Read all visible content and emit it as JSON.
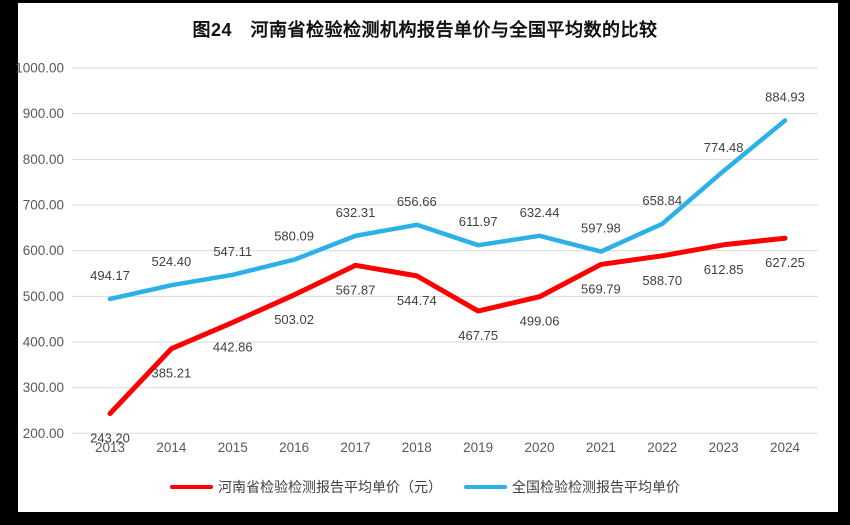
{
  "title": "图24　河南省检验检测机构报告单价与全国平均数的比较",
  "chart_data": {
    "type": "line",
    "categories": [
      "2013",
      "2014",
      "2015",
      "2016",
      "2017",
      "2018",
      "2019",
      "2020",
      "2021",
      "2022",
      "2023",
      "2024"
    ],
    "series": [
      {
        "name": "河南省检验检测报告平均单价（元）",
        "color": "#FF0000",
        "label_position": "below",
        "values": [
          243.2,
          385.21,
          442.86,
          503.02,
          567.87,
          544.74,
          467.75,
          499.06,
          569.79,
          588.7,
          612.85,
          627.25
        ],
        "value_labels": [
          "243.20",
          "385.21",
          "442.86",
          "503.02",
          "567.87",
          "544.74",
          "467.75",
          "499.06",
          "569.79",
          "588.70",
          "612.85",
          "627.25"
        ]
      },
      {
        "name": "全国检验检测报告平均单价",
        "color": "#2BB0E8",
        "label_position": "above",
        "values": [
          494.17,
          524.4,
          547.11,
          580.09,
          632.31,
          656.66,
          611.97,
          632.44,
          597.98,
          658.84,
          774.48,
          884.93
        ],
        "value_labels": [
          "494.17",
          "524.40",
          "547.11",
          "580.09",
          "632.31",
          "656.66",
          "611.97",
          "632.44",
          "597.98",
          "658.84",
          "774.48",
          "884.93"
        ]
      }
    ],
    "title": "图24　河南省检验检测机构报告单价与全国平均数的比较",
    "xlabel": "",
    "ylabel": "",
    "ylim": [
      200,
      1000
    ],
    "ytick_step": 100,
    "ytick_labels": [
      "200.00",
      "300.00",
      "400.00",
      "500.00",
      "600.00",
      "700.00",
      "800.00",
      "900.00",
      "1000.00"
    ],
    "grid": true,
    "legend_position": "bottom"
  },
  "colors": {
    "frame_border": "#000000",
    "background": "#ffffff",
    "gridline": "#D9D9D9",
    "axis_tick_text": "#595959",
    "value_label_text": "#404040",
    "series_henan": "#FF0000",
    "series_national": "#2BB0E8"
  }
}
